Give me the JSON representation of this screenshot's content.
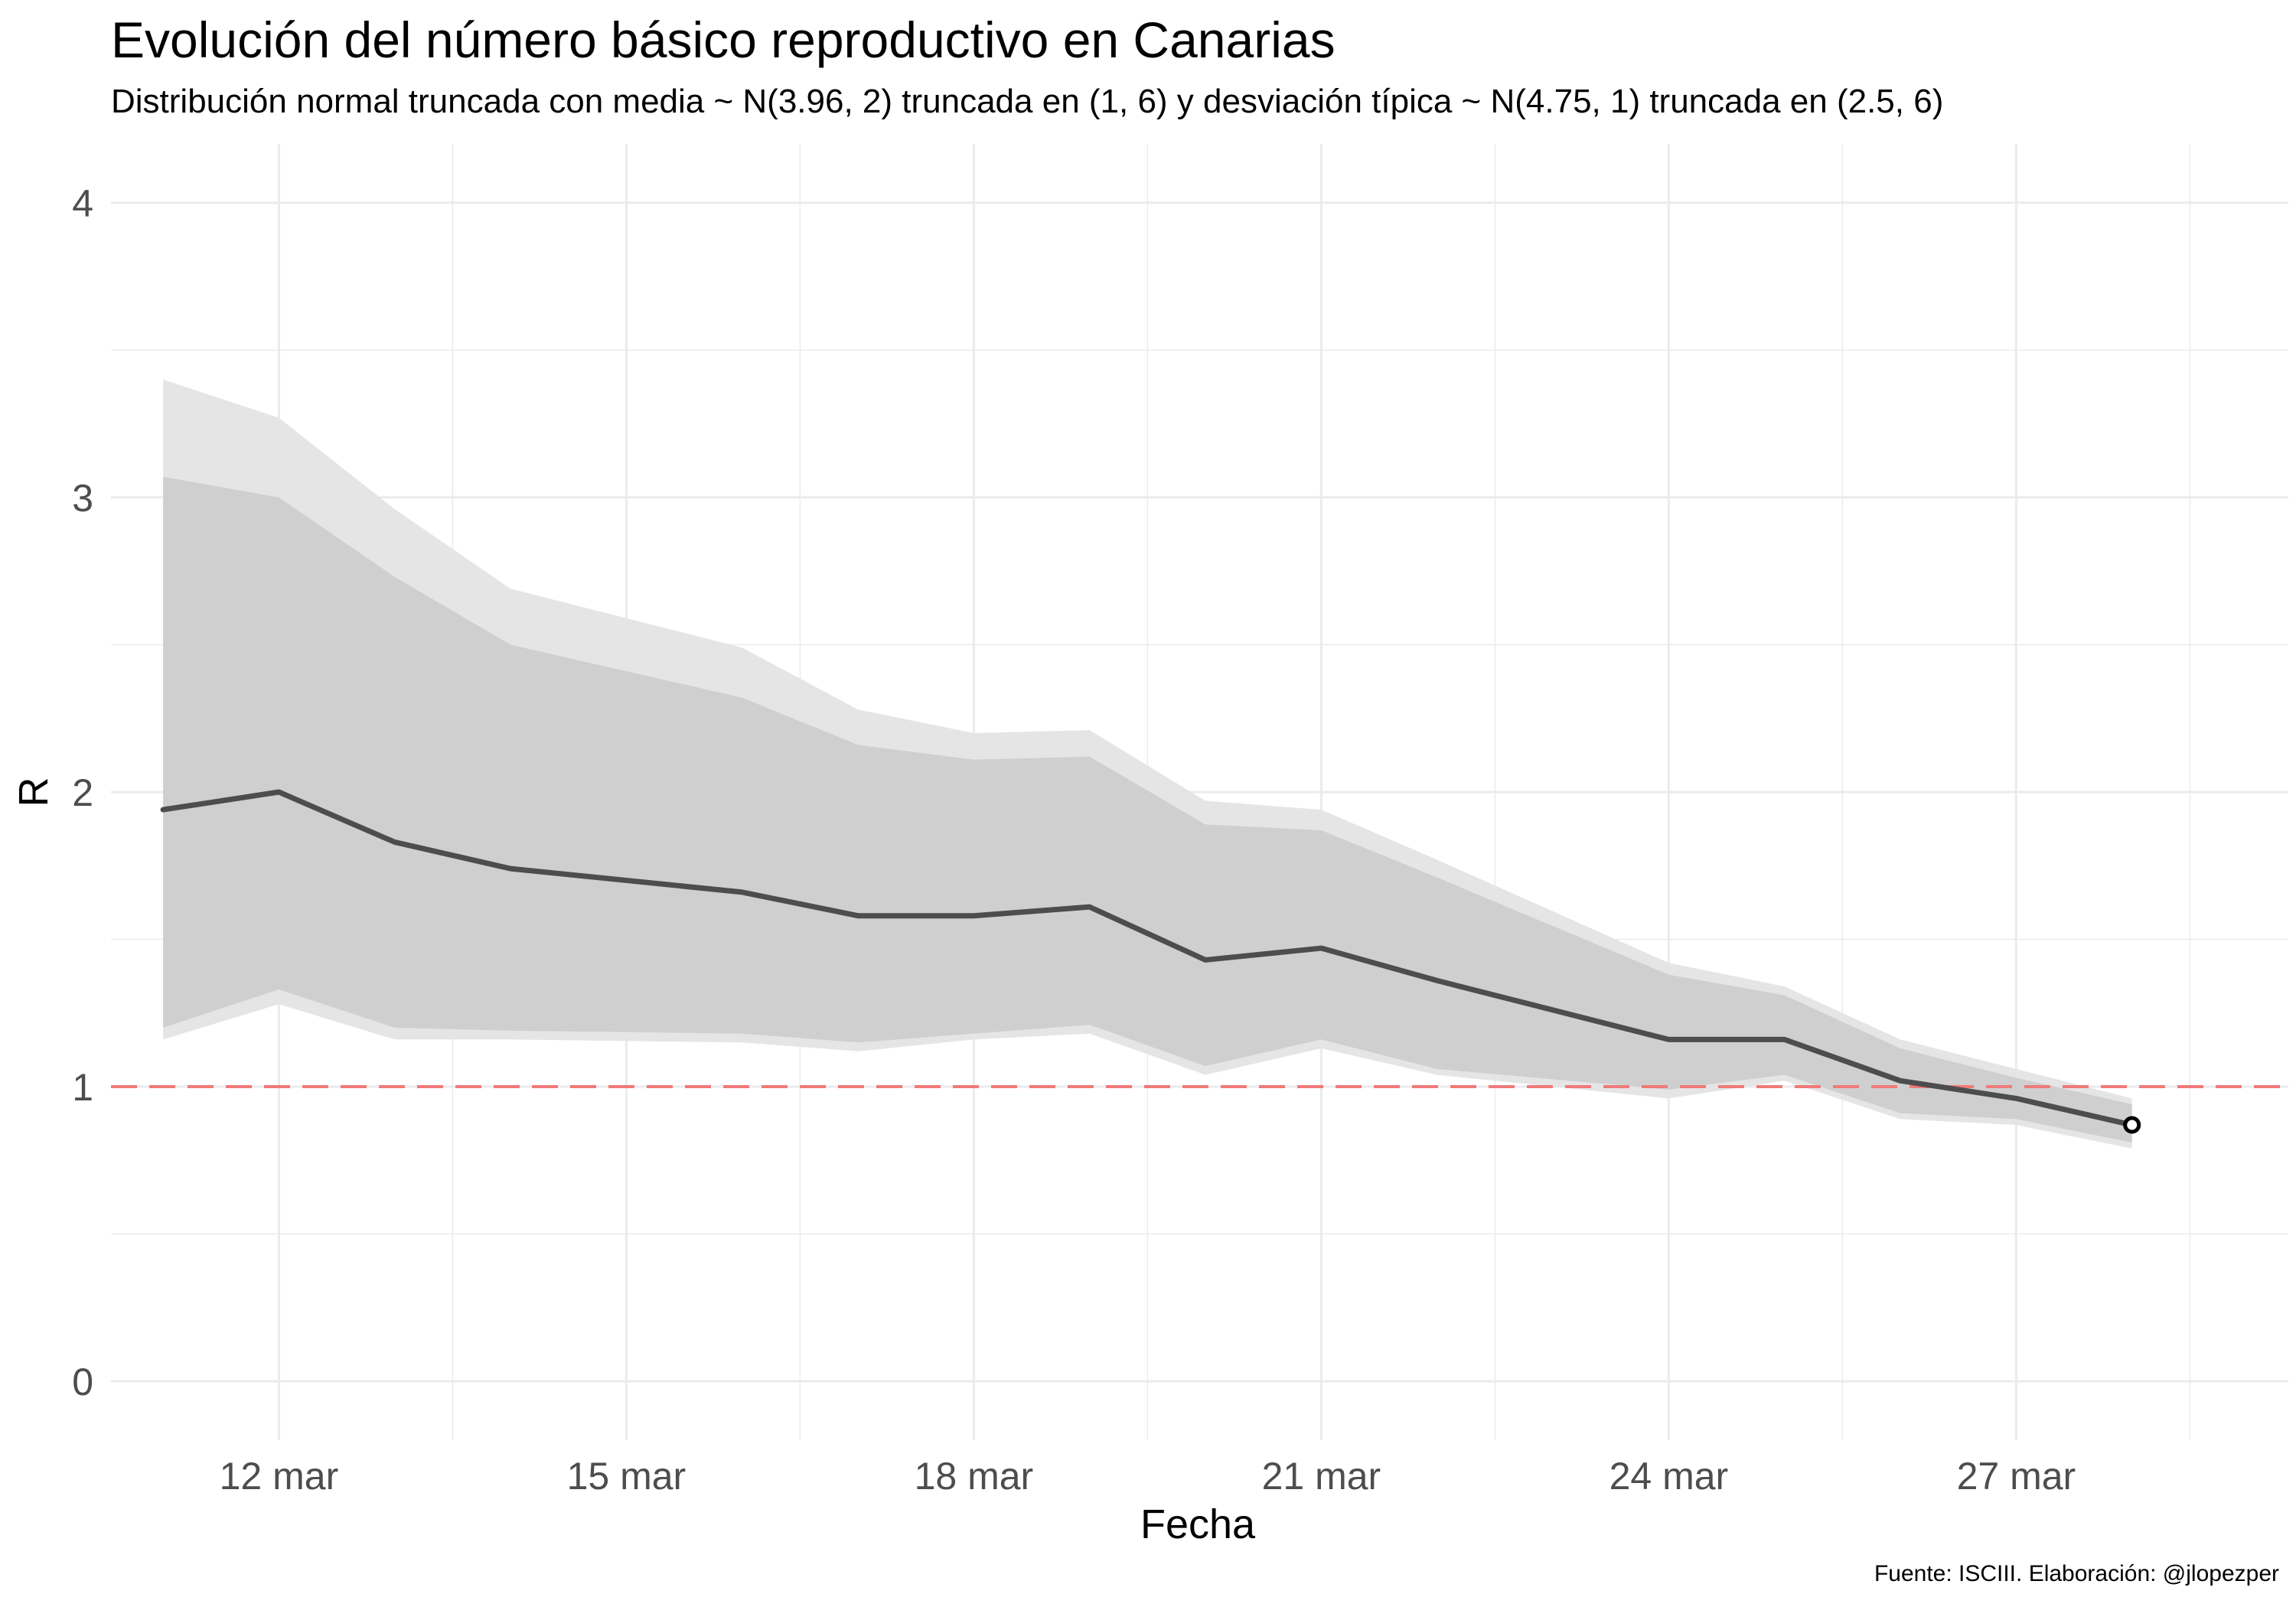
{
  "chart_data": {
    "type": "area",
    "title": "Evolución del número básico reproductivo en Canarias",
    "subtitle": "Distribución normal truncada con media ~ N(3.96, 2) truncada en (1, 6) y desviación típica ~ N(4.75, 1) truncada en (2.5, 6)",
    "caption": "Fuente: ISCIII. Elaboración: @jlopezper",
    "xlabel": "Fecha",
    "ylabel": "R",
    "x_start_label": "11 mar",
    "x": [
      "11 mar",
      "12 mar",
      "13 mar",
      "14 mar",
      "16 mar",
      "17 mar",
      "18 mar",
      "19 mar",
      "20 mar",
      "21 mar",
      "22 mar",
      "24 mar",
      "25 mar",
      "26 mar",
      "27 mar",
      "28 mar"
    ],
    "x_days": [
      11,
      12,
      13,
      14,
      16,
      17,
      18,
      19,
      20,
      21,
      22,
      24,
      25,
      26,
      27,
      28
    ],
    "x_ticks": [
      "12 mar",
      "15 mar",
      "18 mar",
      "21 mar",
      "24 mar",
      "27 mar"
    ],
    "x_tick_days": [
      12,
      15,
      18,
      21,
      24,
      27
    ],
    "xlim_days": [
      10.55,
      29.35
    ],
    "y_ticks": [
      0,
      1,
      2,
      3,
      4
    ],
    "ylim": [
      -0.2,
      4.2
    ],
    "grid": true,
    "legend": "none",
    "series": [
      {
        "values": [
          1.94,
          2.0,
          1.83,
          1.74,
          1.66,
          1.58,
          1.58,
          1.61,
          1.43,
          1.47,
          1.36,
          1.16,
          1.16,
          1.02,
          0.96,
          0.87
        ]
      }
    ],
    "band_95": {
      "lower": [
        1.16,
        1.28,
        1.16,
        1.16,
        1.15,
        1.12,
        1.16,
        1.18,
        1.04,
        1.13,
        1.04,
        0.96,
        1.02,
        0.89,
        0.87,
        0.79
      ],
      "upper": [
        3.4,
        3.27,
        2.96,
        2.69,
        2.49,
        2.28,
        2.2,
        2.21,
        1.97,
        1.94,
        1.77,
        1.42,
        1.34,
        1.16,
        1.06,
        0.96
      ]
    },
    "band_90": {
      "lower": [
        1.2,
        1.33,
        1.2,
        1.19,
        1.18,
        1.15,
        1.18,
        1.21,
        1.07,
        1.16,
        1.06,
        0.99,
        1.04,
        0.91,
        0.89,
        0.81
      ],
      "upper": [
        3.07,
        3.0,
        2.73,
        2.5,
        2.32,
        2.16,
        2.11,
        2.12,
        1.89,
        1.87,
        1.71,
        1.38,
        1.31,
        1.13,
        1.03,
        0.94
      ]
    },
    "reference_line": {
      "y": 1,
      "color": "#f07a7a",
      "style": "dashed"
    },
    "colors": {
      "line": "#4d4d4d",
      "band_95": "#e5e5e5",
      "band_90": "#cfcfcf",
      "grid": "#ebebeb"
    }
  }
}
